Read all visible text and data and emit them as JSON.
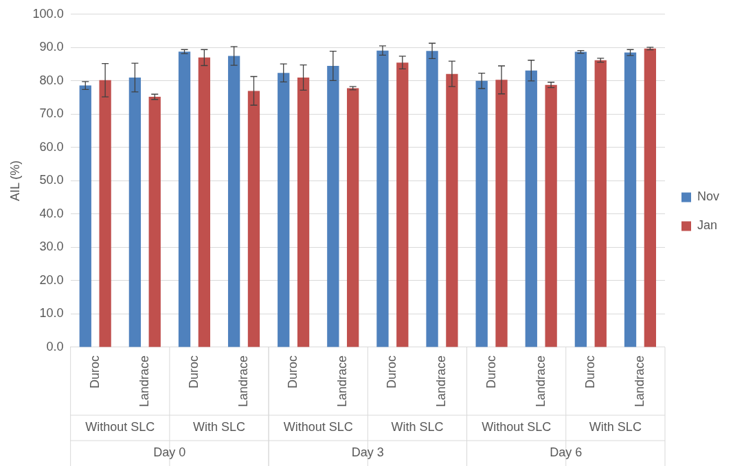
{
  "chart_data": {
    "type": "bar",
    "ylabel": "AIL (%)",
    "categories": [
      "Duroc",
      "Landrace",
      "Duroc",
      "Landrace",
      "Duroc",
      "Landrace",
      "Duroc",
      "Landrace",
      "Duroc",
      "Landrace",
      "Duroc",
      "Landrace"
    ],
    "series": [
      {
        "name": "Nov",
        "color": "#4f81bd",
        "values": [
          78.6,
          81.0,
          88.8,
          87.5,
          82.4,
          84.5,
          89.1,
          89.0,
          80.0,
          83.1,
          88.7,
          88.5
        ],
        "errors": [
          1.2,
          4.3,
          0.6,
          2.8,
          2.7,
          4.4,
          1.4,
          2.3,
          2.3,
          3.1,
          0.4,
          0.9
        ]
      },
      {
        "name": "Jan",
        "color": "#c0504d",
        "values": [
          80.2,
          75.2,
          87.0,
          77.0,
          81.0,
          77.8,
          85.5,
          82.1,
          80.3,
          78.8,
          86.2,
          89.7
        ],
        "errors": [
          5.0,
          0.8,
          2.4,
          4.3,
          3.8,
          0.5,
          1.9,
          3.8,
          4.2,
          0.8,
          0.6,
          0.4
        ]
      }
    ],
    "annotations": [
      "Without SLC",
      "With SLC",
      "Without SLC",
      "With SLC",
      "Without SLC",
      "With SLC",
      "Day 0",
      "Day 3",
      "Day 6"
    ],
    "ylim": [
      0,
      100
    ],
    "yticks": [
      {
        "value": 0,
        "label": "0.0"
      },
      {
        "value": 10,
        "label": "10.0"
      },
      {
        "value": 20,
        "label": "20.0"
      },
      {
        "value": 30,
        "label": "30.0"
      },
      {
        "value": 40,
        "label": "40.0"
      },
      {
        "value": 50,
        "label": "50.0"
      },
      {
        "value": 60,
        "label": "60.0"
      },
      {
        "value": 70,
        "label": "70.0"
      },
      {
        "value": 80,
        "label": "80.0"
      },
      {
        "value": 90,
        "label": "90.0"
      },
      {
        "value": 100,
        "label": "100.0"
      }
    ],
    "grid": "y",
    "legend": "right"
  }
}
